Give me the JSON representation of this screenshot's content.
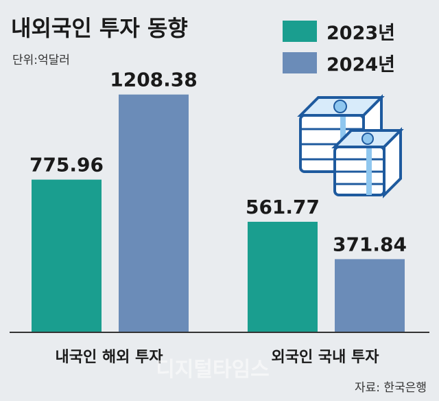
{
  "chart_data": {
    "type": "bar",
    "title": "내외국인 투자 동향",
    "unit_label": "단위:억달러",
    "categories": [
      "내국인 해외 투자",
      "외국인 국내 투자"
    ],
    "series": [
      {
        "name": "2023년",
        "values": [
          775.96,
          561.77
        ],
        "color": "#1a9e8f"
      },
      {
        "name": "2024년",
        "values": [
          1208.38,
          371.84
        ],
        "color": "#6b8cb8"
      }
    ],
    "data_labels": [
      [
        "775.96",
        "561.77"
      ],
      [
        "1208.38",
        "371.84"
      ]
    ],
    "ylim": [
      0,
      1270
    ],
    "grid": false,
    "legend_position": "top-right",
    "source": "자료: 한국은행",
    "watermark": "디지털타임스"
  },
  "icons": [
    "money-stack-icon",
    "money-stack-icon"
  ]
}
